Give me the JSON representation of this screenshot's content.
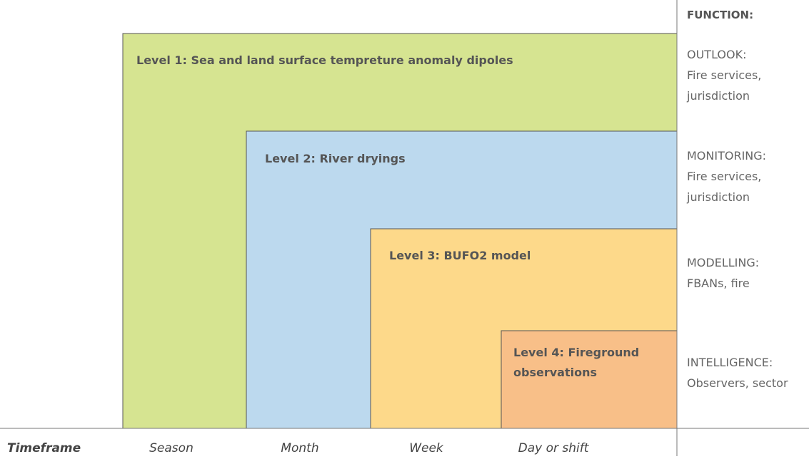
{
  "levels": [
    {
      "label": "Level 1: Sea and land surface tempreture anomaly dipoles"
    },
    {
      "label": "Level 2: River dryings"
    },
    {
      "label": "Level 3: BUFO2 model"
    },
    {
      "label": "Level 4: Fireground observations"
    }
  ],
  "function": {
    "header": "FUNCTION:",
    "items": [
      {
        "title": "OUTLOOK:",
        "lines": [
          "Fire services,",
          "jurisdiction"
        ]
      },
      {
        "title": "MONITORING:",
        "lines": [
          "Fire services,",
          "jurisdiction"
        ]
      },
      {
        "title": "MODELLING:",
        "lines": [
          "FBANs, fire"
        ]
      },
      {
        "title": "INTELLIGENCE:",
        "lines": [
          "Observers, sector"
        ]
      }
    ]
  },
  "timeframe": {
    "label": "Timeframe",
    "items": [
      "Season",
      "Month",
      "Week",
      "Day or shift"
    ]
  }
}
